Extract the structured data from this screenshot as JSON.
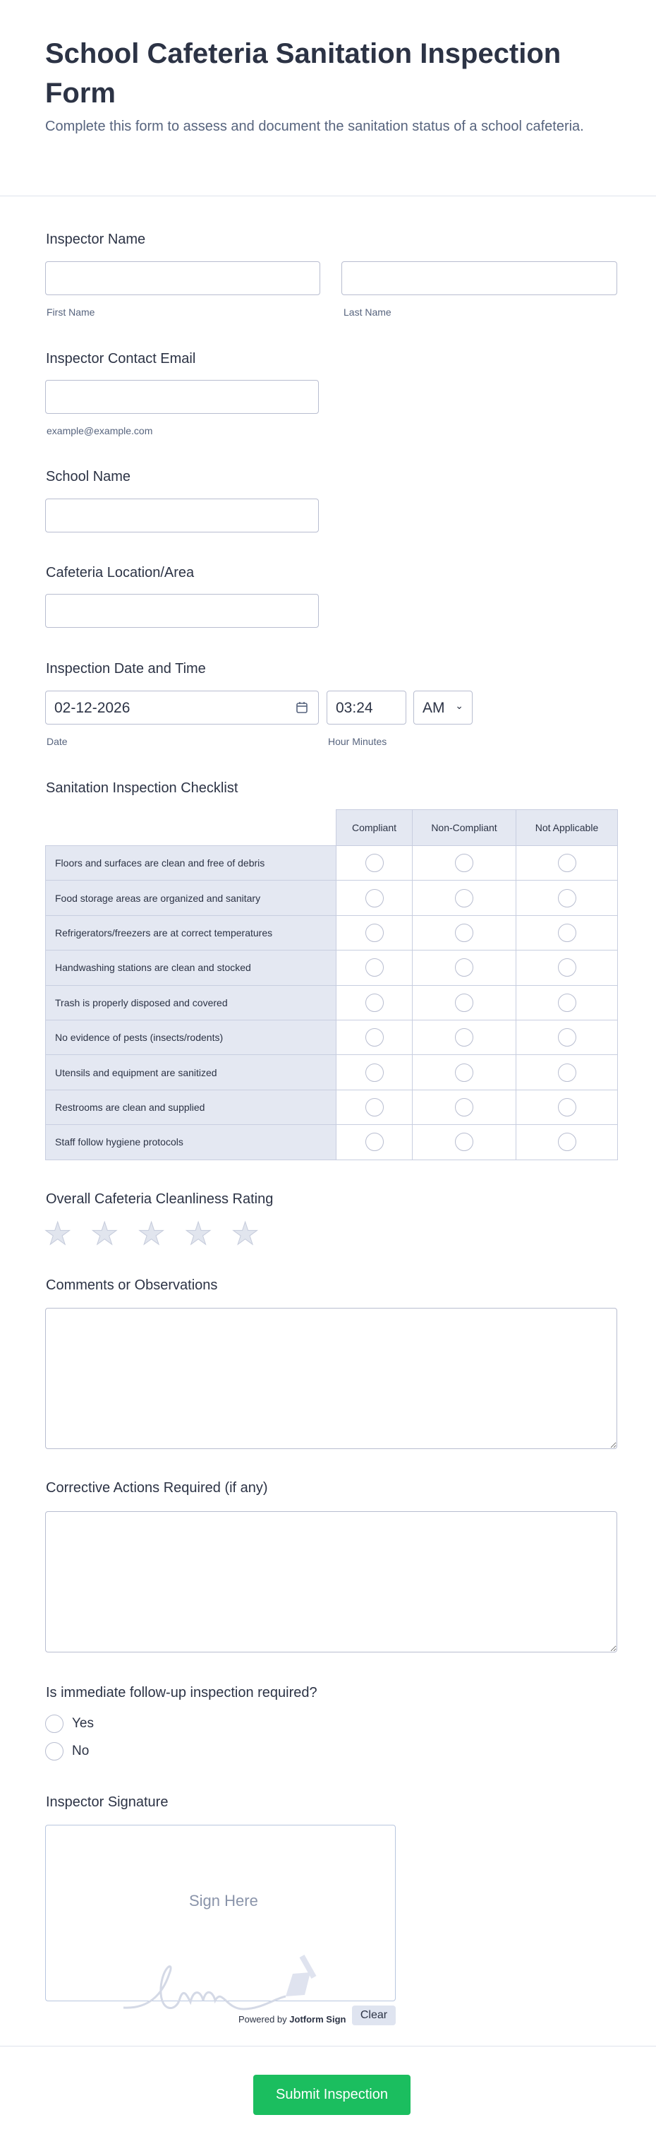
{
  "header": {
    "title": "School Cafeteria Sanitation Inspection Form",
    "subtitle": "Complete this form to assess and document the sanitation status of a school cafeteria."
  },
  "inspector_name": {
    "label": "Inspector Name",
    "first_sublabel": "First Name",
    "last_sublabel": "Last Name",
    "first_value": "",
    "last_value": ""
  },
  "email": {
    "label": "Inspector Contact Email",
    "sublabel": "example@example.com",
    "value": ""
  },
  "school": {
    "label": "School Name",
    "value": ""
  },
  "location": {
    "label": "Cafeteria Location/Area",
    "value": ""
  },
  "datetime": {
    "label": "Inspection Date and Time",
    "date": "02-12-2026",
    "time": "03:24",
    "ampm": "AM",
    "date_sublabel": "Date",
    "time_sublabel": "Hour Minutes"
  },
  "checklist": {
    "label": "Sanitation Inspection Checklist",
    "columns": [
      "Compliant",
      "Non-Compliant",
      "Not Applicable"
    ],
    "rows": [
      "Floors and surfaces are clean and free of debris",
      "Food storage areas are organized and sanitary",
      "Refrigerators/freezers are at correct temperatures",
      "Handwashing stations are clean and stocked",
      "Trash is properly disposed and covered",
      "No evidence of pests (insects/rodents)",
      "Utensils and equipment are sanitized",
      "Restrooms are clean and supplied",
      "Staff follow hygiene protocols"
    ]
  },
  "rating": {
    "label": "Overall Cafeteria Cleanliness Rating",
    "max": 5,
    "value": 0
  },
  "comments": {
    "label": "Comments or Observations",
    "value": ""
  },
  "corrective": {
    "label": "Corrective Actions Required (if any)",
    "value": ""
  },
  "followup": {
    "label": "Is immediate follow-up inspection required?",
    "options": [
      "Yes",
      "No"
    ]
  },
  "signature": {
    "label": "Inspector Signature",
    "placeholder": "Sign Here",
    "powered_by": "Powered by",
    "brand": "Jotform Sign",
    "clear": "Clear"
  },
  "submit": {
    "label": "Submit Inspection",
    "color": "#1bbe5f"
  }
}
